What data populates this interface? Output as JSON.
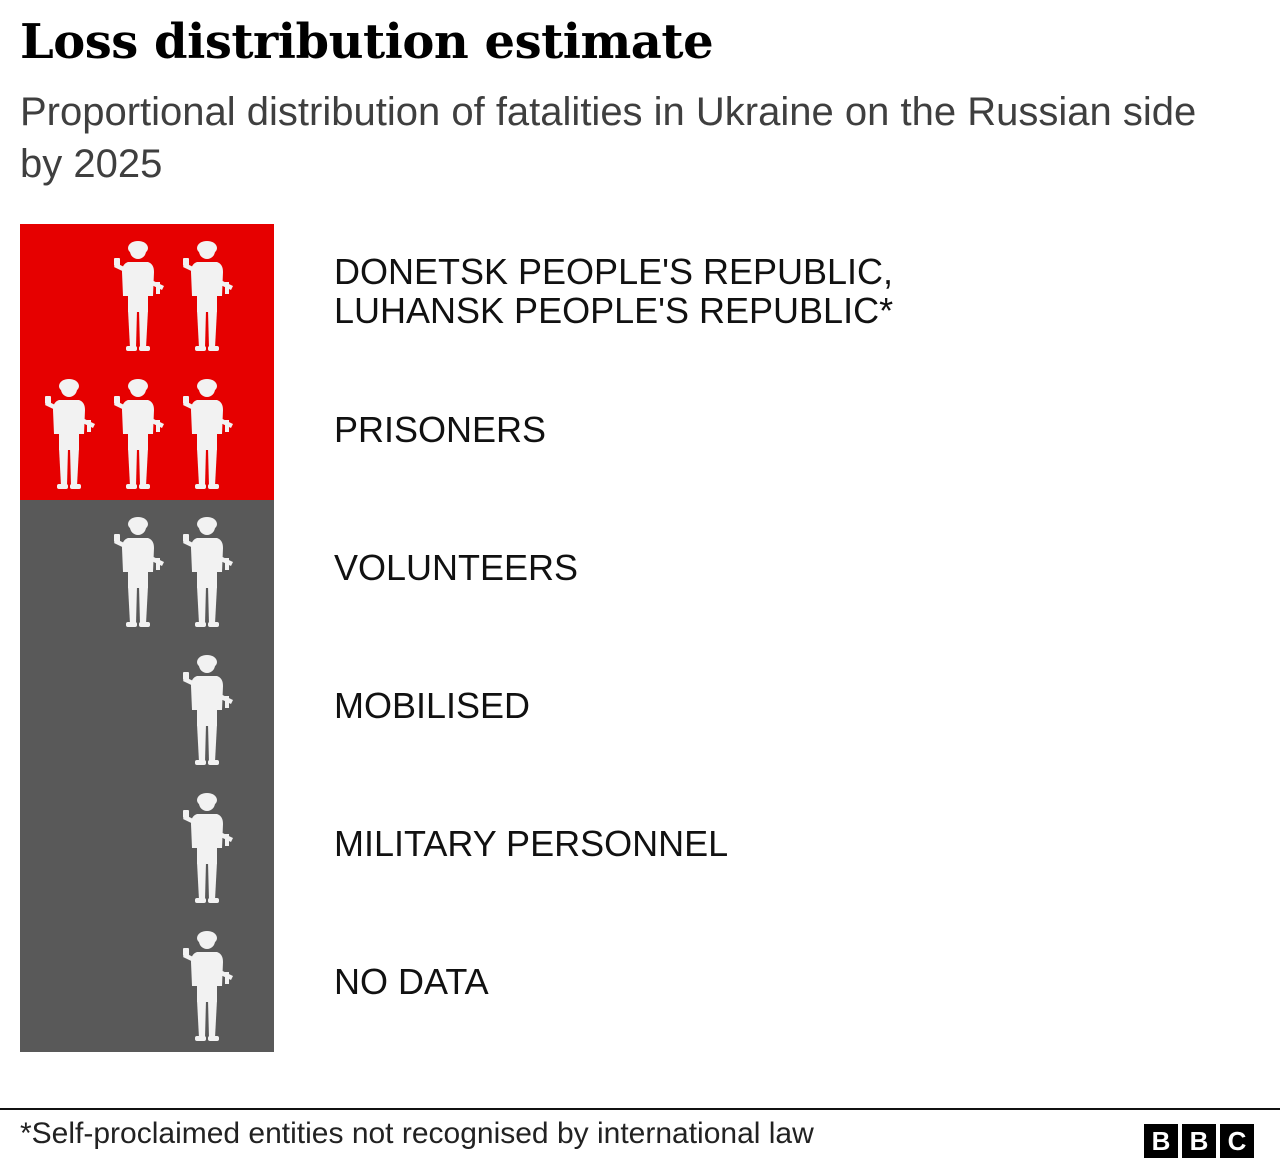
{
  "header": {
    "title": "Loss distribution estimate",
    "subtitle": "Proportional distribution of fatalities in Ukraine on the Russian side by 2025"
  },
  "chart_data": {
    "type": "pictogram",
    "title": "Loss distribution estimate",
    "subtitle": "Proportional distribution of fatalities in Ukraine on the Russian side by 2025",
    "icon": "soldier-icon",
    "categories": [
      {
        "label": "DONETSK PEOPLE'S REPUBLIC,\nLUHANSK PEOPLE'S REPUBLIC*",
        "icons": 2,
        "group": "red"
      },
      {
        "label": "PRISONERS",
        "icons": 3,
        "group": "red"
      },
      {
        "label": "VOLUNTEERS",
        "icons": 2,
        "group": "grey"
      },
      {
        "label": "MOBILISED",
        "icons": 1,
        "group": "grey"
      },
      {
        "label": "MILITARY PERSONNEL",
        "icons": 1,
        "group": "grey"
      },
      {
        "label": "NO DATA",
        "icons": 1,
        "group": "grey"
      }
    ],
    "colors": {
      "red": "#e60000",
      "grey": "#595959",
      "icon": "#f2f2f2"
    }
  },
  "footer": {
    "footnote": "*Self-proclaimed entities not recognised by international law",
    "logo_letters": [
      "B",
      "B",
      "C"
    ]
  }
}
